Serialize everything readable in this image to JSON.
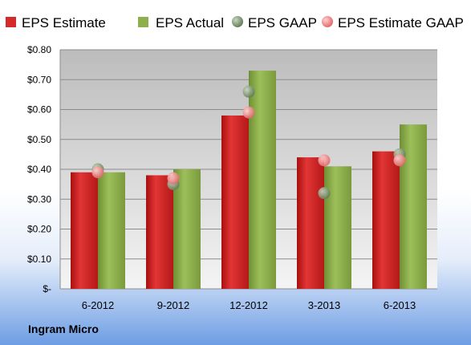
{
  "company": "Ingram Micro",
  "chart_data": {
    "type": "bar",
    "title": "",
    "xlabel": "",
    "ylabel": "",
    "categories": [
      "6-2012",
      "9-2012",
      "12-2012",
      "3-2013",
      "6-2013"
    ],
    "series": [
      {
        "name": "EPS Estimate",
        "kind": "bar",
        "color": "#d42a2a",
        "values": [
          0.39,
          0.38,
          0.58,
          0.44,
          0.46
        ]
      },
      {
        "name": "EPS Actual",
        "kind": "bar",
        "color": "#8db04c",
        "values": [
          0.39,
          0.4,
          0.73,
          0.41,
          0.55
        ]
      },
      {
        "name": "EPS GAAP",
        "kind": "marker",
        "color": "#7c9a6c",
        "values": [
          0.4,
          0.35,
          0.66,
          0.32,
          0.45
        ]
      },
      {
        "name": "EPS Estimate GAAP",
        "kind": "marker",
        "color": "#f08080",
        "values": [
          0.39,
          0.37,
          0.59,
          0.43,
          0.43
        ]
      }
    ],
    "ylim": [
      0,
      0.8
    ],
    "yticks": [
      0,
      0.1,
      0.2,
      0.3,
      0.4,
      0.5,
      0.6,
      0.7,
      0.8
    ],
    "ytick_labels": [
      "$-",
      "$0.10",
      "$0.20",
      "$0.30",
      "$0.40",
      "$0.50",
      "$0.60",
      "$0.70",
      "$0.80"
    ],
    "grid": true,
    "legend_position": "top"
  }
}
